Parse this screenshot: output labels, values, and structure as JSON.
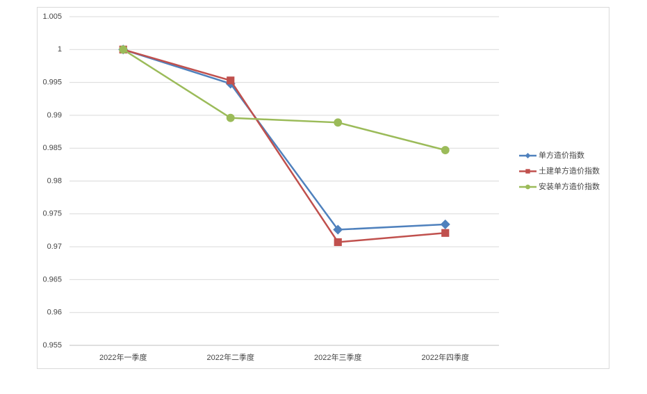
{
  "chart_data": {
    "type": "line",
    "categories": [
      "2022年一季度",
      "2022年二季度",
      "2022年三季度",
      "2022年四季度"
    ],
    "series": [
      {
        "name": "单方造价指数",
        "color": "#4f81bd",
        "marker": "diamond",
        "values": [
          1,
          0.9948,
          0.9726,
          0.9734
        ]
      },
      {
        "name": "土建单方造价指数",
        "color": "#c0504d",
        "marker": "square",
        "values": [
          1,
          0.9953,
          0.9707,
          0.9721
        ]
      },
      {
        "name": "安装单方造价指数",
        "color": "#9bbb59",
        "marker": "circle",
        "values": [
          1,
          0.9896,
          0.9889,
          0.9847
        ]
      }
    ],
    "ylim": [
      0.955,
      1.005
    ],
    "yticks": [
      0.955,
      0.96,
      0.965,
      0.97,
      0.975,
      0.98,
      0.985,
      0.99,
      0.995,
      1,
      1.005
    ],
    "grid": true,
    "legend": "right"
  }
}
